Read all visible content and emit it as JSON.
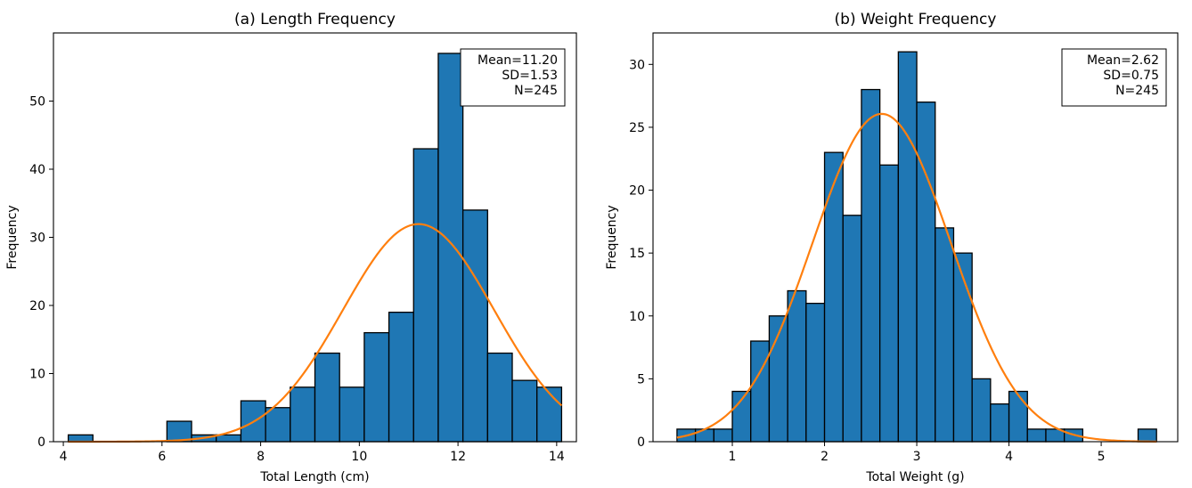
{
  "chart_data": [
    {
      "type": "bar",
      "title": "(a) Length Frequency",
      "xlabel": "Total Length (cm)",
      "ylabel": "Frequency",
      "xlim": [
        3.8,
        14.4
      ],
      "ylim": [
        0,
        60
      ],
      "xticks": [
        4,
        6,
        8,
        10,
        12,
        14
      ],
      "yticks": [
        0,
        10,
        20,
        30,
        40,
        50
      ],
      "bin_start": 4.1,
      "bin_width": 0.5,
      "values": [
        1,
        0,
        0,
        0,
        3,
        1,
        1,
        6,
        5,
        8,
        13,
        8,
        16,
        19,
        43,
        57,
        34,
        13,
        9,
        8
      ],
      "fit_curve": {
        "type": "normal",
        "mean": 11.2,
        "sd": 1.53,
        "n": 245,
        "color": "#ff7f0e"
      },
      "stats_box": [
        "Mean=11.20",
        "SD=1.53",
        "N=245"
      ],
      "bar_color": "#1f77b4",
      "grid": false
    },
    {
      "type": "bar",
      "title": "(b) Weight Frequency",
      "xlabel": "Total Weight (g)",
      "ylabel": "Frequency",
      "xlim": [
        0.14,
        5.83
      ],
      "ylim": [
        0,
        32.5
      ],
      "xticks": [
        1,
        2,
        3,
        4,
        5
      ],
      "yticks": [
        0,
        5,
        10,
        15,
        20,
        25,
        30
      ],
      "bin_start": 0.4,
      "bin_width": 0.2,
      "values": [
        1,
        1,
        1,
        4,
        8,
        10,
        12,
        11,
        23,
        18,
        28,
        22,
        31,
        27,
        17,
        15,
        5,
        3,
        4,
        1,
        1,
        1,
        0,
        0,
        0,
        1
      ],
      "fit_curve": {
        "type": "normal",
        "mean": 2.62,
        "sd": 0.75,
        "n": 245,
        "color": "#ff7f0e"
      },
      "stats_box": [
        "Mean=2.62",
        "SD=0.75",
        "N=245"
      ],
      "bar_color": "#1f77b4",
      "grid": false
    }
  ]
}
